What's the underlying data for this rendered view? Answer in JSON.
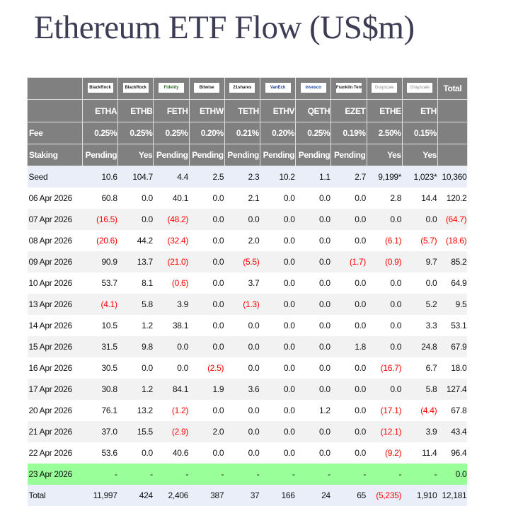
{
  "title": "Ethereum ETF Flow (US$m)",
  "colors": {
    "header_bg": "#808080",
    "negative": "#ff0000",
    "current_row": "#99ff99",
    "seed_total_row": "#e9eef8"
  },
  "issuers": [
    "BlackRock",
    "BlackRock",
    "Fidelity",
    "Bitwise",
    "21shares",
    "VanEck",
    "Invesco",
    "Franklin Templeton",
    "Grayscale",
    "Grayscale"
  ],
  "total_label": "Total",
  "tickers": [
    "ETHA",
    "ETHB",
    "FETH",
    "ETHW",
    "TETH",
    "ETHV",
    "QETH",
    "EZET",
    "ETHE",
    "ETH"
  ],
  "fee_label": "Fee",
  "fees": [
    "0.25%",
    "0.25%",
    "0.25%",
    "0.20%",
    "0.21%",
    "0.20%",
    "0.25%",
    "0.19%",
    "2.50%",
    "0.15%"
  ],
  "staking_label": "Staking",
  "staking": [
    "Pending",
    "Yes",
    "Pending",
    "Pending",
    "Pending",
    "Pending",
    "Pending",
    "Pending",
    "Yes",
    "Yes"
  ],
  "rows": [
    {
      "label": "Seed",
      "values": [
        "10.6",
        "104.7",
        "4.4",
        "2.5",
        "2.3",
        "10.2",
        "1.1",
        "2.7",
        "9,199*",
        "1,023*",
        "10,360"
      ]
    },
    {
      "label": "06 Apr 2026",
      "values": [
        "60.8",
        "0.0",
        "40.1",
        "0.0",
        "2.1",
        "0.0",
        "0.0",
        "0.0",
        "2.8",
        "14.4",
        "120.2"
      ]
    },
    {
      "label": "07 Apr 2026",
      "values": [
        "(16.5)",
        "0.0",
        "(48.2)",
        "0.0",
        "0.0",
        "0.0",
        "0.0",
        "0.0",
        "0.0",
        "0.0",
        "(64.7)"
      ]
    },
    {
      "label": "08 Apr 2026",
      "values": [
        "(20.6)",
        "44.2",
        "(32.4)",
        "0.0",
        "2.0",
        "0.0",
        "0.0",
        "0.0",
        "(6.1)",
        "(5.7)",
        "(18.6)"
      ]
    },
    {
      "label": "09 Apr 2026",
      "values": [
        "90.9",
        "13.7",
        "(21.0)",
        "0.0",
        "(5.5)",
        "0.0",
        "0.0",
        "(1.7)",
        "(0.9)",
        "9.7",
        "85.2"
      ]
    },
    {
      "label": "10 Apr 2026",
      "values": [
        "53.7",
        "8.1",
        "(0.6)",
        "0.0",
        "3.7",
        "0.0",
        "0.0",
        "0.0",
        "0.0",
        "0.0",
        "64.9"
      ]
    },
    {
      "label": "13 Apr 2026",
      "values": [
        "(4.1)",
        "5.8",
        "3.9",
        "0.0",
        "(1.3)",
        "0.0",
        "0.0",
        "0.0",
        "0.0",
        "5.2",
        "9.5"
      ]
    },
    {
      "label": "14 Apr 2026",
      "values": [
        "10.5",
        "1.2",
        "38.1",
        "0.0",
        "0.0",
        "0.0",
        "0.0",
        "0.0",
        "0.0",
        "3.3",
        "53.1"
      ]
    },
    {
      "label": "15 Apr 2026",
      "values": [
        "31.5",
        "9.8",
        "0.0",
        "0.0",
        "0.0",
        "0.0",
        "0.0",
        "1.8",
        "0.0",
        "24.8",
        "67.9"
      ]
    },
    {
      "label": "16 Apr 2026",
      "values": [
        "30.5",
        "0.0",
        "0.0",
        "(2.5)",
        "0.0",
        "0.0",
        "0.0",
        "0.0",
        "(16.7)",
        "6.7",
        "18.0"
      ]
    },
    {
      "label": "17 Apr 2026",
      "values": [
        "30.8",
        "1.2",
        "84.1",
        "1.9",
        "3.6",
        "0.0",
        "0.0",
        "0.0",
        "0.0",
        "5.8",
        "127.4"
      ]
    },
    {
      "label": "20 Apr 2026",
      "values": [
        "76.1",
        "13.2",
        "(1.2)",
        "0.0",
        "0.0",
        "0.0",
        "1.2",
        "0.0",
        "(17.1)",
        "(4.4)",
        "67.8"
      ]
    },
    {
      "label": "21 Apr 2026",
      "values": [
        "37.0",
        "15.5",
        "(2.9)",
        "2.0",
        "0.0",
        "0.0",
        "0.0",
        "0.0",
        "(12.1)",
        "3.9",
        "43.4"
      ]
    },
    {
      "label": "22 Apr 2026",
      "values": [
        "53.6",
        "0.0",
        "40.6",
        "0.0",
        "0.0",
        "0.0",
        "0.0",
        "0.0",
        "(9.2)",
        "11.4",
        "96.4"
      ]
    },
    {
      "label": "23 Apr 2026",
      "values": [
        "-",
        "-",
        "-",
        "-",
        "-",
        "-",
        "-",
        "-",
        "-",
        "-",
        "0.0"
      ]
    },
    {
      "label": "Total",
      "values": [
        "11,997",
        "424",
        "2,406",
        "387",
        "37",
        "166",
        "24",
        "65",
        "(5,235)",
        "1,910",
        "12,181"
      ]
    }
  ]
}
